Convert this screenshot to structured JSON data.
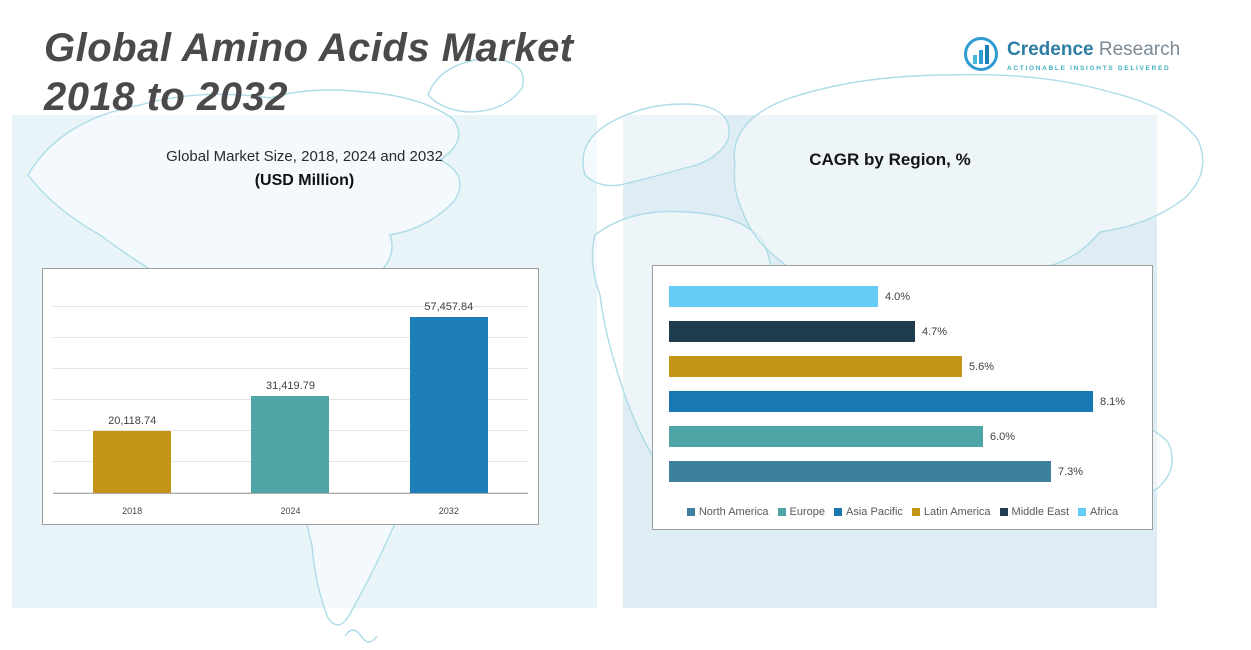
{
  "header": {
    "title_line1": "Global Amino Acids Market",
    "title_line2": "2018 to 2032"
  },
  "logo": {
    "brand_primary": "Credence",
    "brand_secondary": " Research",
    "tagline": "Actionable Insights Delivered"
  },
  "chart_data": [
    {
      "type": "bar",
      "title": "Global Market Size, 2018, 2024 and 2032",
      "subtitle": "(USD Million)",
      "categories": [
        "2018",
        "2024",
        "2032"
      ],
      "values": [
        20118.74,
        31419.79,
        57457.84
      ],
      "value_labels": [
        "20,118.74",
        "31,419.79",
        "57,457.84"
      ],
      "bar_colors": [
        "#C39417",
        "#4FA5A5",
        "#1E7FB8"
      ],
      "xlabel": "",
      "ylabel": "",
      "ylim": [
        0,
        70000
      ],
      "grid": true,
      "legend_position": "none"
    },
    {
      "type": "bar",
      "orientation": "horizontal",
      "title": "CAGR by Region, %",
      "categories": [
        "Africa",
        "Middle East",
        "Latin America",
        "Asia Pacific",
        "Europe",
        "North America"
      ],
      "values": [
        4.0,
        4.7,
        5.6,
        8.1,
        6.0,
        7.3
      ],
      "value_labels": [
        "4.0%",
        "4.7%",
        "5.6%",
        "8.1%",
        "6.0%",
        "7.3%"
      ],
      "bar_colors": [
        "#63CBF5",
        "#1E3C4E",
        "#C39417",
        "#1878B4",
        "#4FA5A5",
        "#3F7F9E"
      ],
      "xlim": [
        0,
        9
      ],
      "grid": false,
      "legend_position": "bottom",
      "legend": [
        {
          "label": "North America",
          "color": "#3F7F9E"
        },
        {
          "label": "Europe",
          "color": "#4FA5A5"
        },
        {
          "label": "Asia Pacific",
          "color": "#1878B4"
        },
        {
          "label": "Latin America",
          "color": "#C39417"
        },
        {
          "label": "Middle East",
          "color": "#1E3C4E"
        },
        {
          "label": "Africa",
          "color": "#63CBF5"
        }
      ]
    }
  ]
}
